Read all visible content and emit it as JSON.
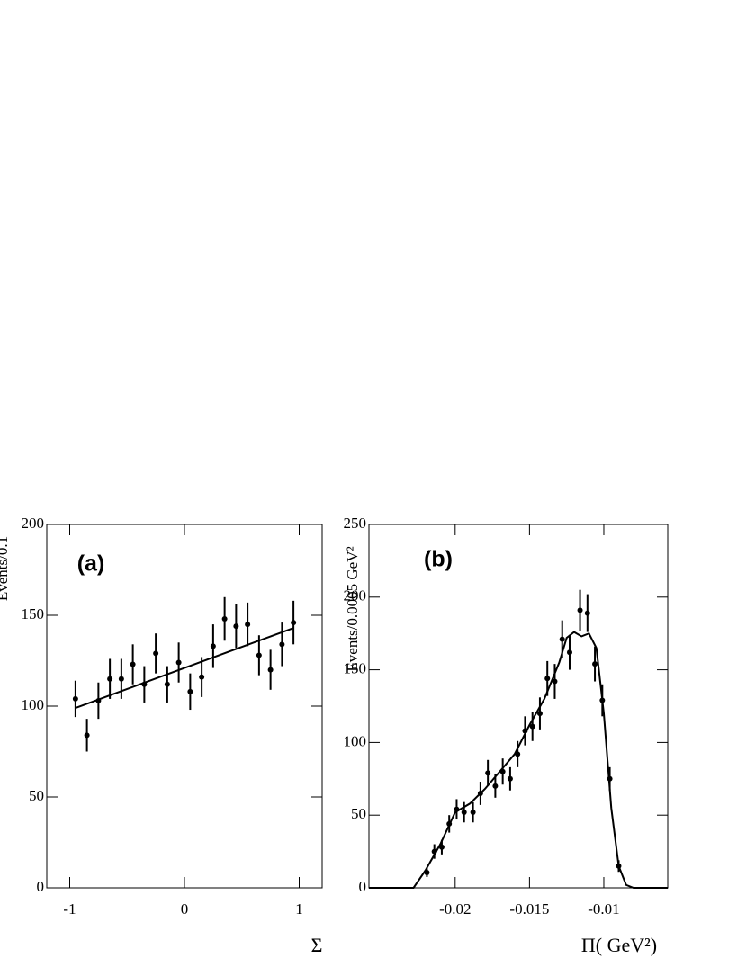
{
  "chart_data": [
    {
      "type": "scatter",
      "panel_label": "(a)",
      "xlabel": "Σ",
      "ylabel": "Events/0.1",
      "xlim": [
        -1.2,
        1.2
      ],
      "xticks": [
        -1,
        0,
        1
      ],
      "ylim": [
        0,
        200
      ],
      "yticks": [
        0,
        50,
        100,
        150,
        200
      ],
      "series": [
        {
          "style": "points",
          "color": "#000000",
          "x": [
            -0.95,
            -0.85,
            -0.75,
            -0.65,
            -0.55,
            -0.45,
            -0.35,
            -0.25,
            -0.15,
            -0.05,
            0.05,
            0.15,
            0.25,
            0.35,
            0.45,
            0.55,
            0.65,
            0.75,
            0.85,
            0.95
          ],
          "values": [
            104,
            84,
            103,
            115,
            115,
            123,
            112,
            129,
            112,
            124,
            108,
            116,
            133,
            148,
            144,
            145,
            128,
            120,
            134,
            146
          ],
          "errors": [
            10,
            9,
            10,
            11,
            11,
            11,
            10,
            11,
            10,
            11,
            10,
            11,
            12,
            12,
            12,
            12,
            11,
            11,
            12,
            12
          ]
        },
        {
          "style": "line",
          "color": "#000000",
          "x": [
            -0.95,
            0.95
          ],
          "values": [
            99,
            143
          ]
        }
      ]
    },
    {
      "type": "scatter",
      "panel_label": "(b)",
      "xlabel": "Π( GeV²)",
      "ylabel": "Events/0.0005 GeV²",
      "xlim": [
        -0.0258,
        -0.0057
      ],
      "xticks": [
        -0.02,
        -0.015,
        -0.01
      ],
      "ylim": [
        0,
        250
      ],
      "yticks": [
        0,
        50,
        100,
        150,
        200,
        250
      ],
      "series": [
        {
          "style": "points",
          "color": "#000000",
          "x": [
            -0.0219,
            -0.0214,
            -0.0209,
            -0.0204,
            -0.0199,
            -0.0194,
            -0.0188,
            -0.0183,
            -0.0178,
            -0.0173,
            -0.0168,
            -0.0163,
            -0.0158,
            -0.0153,
            -0.0148,
            -0.0143,
            -0.0138,
            -0.0133,
            -0.0128,
            -0.0123,
            -0.0116,
            -0.0111,
            -0.0106,
            -0.0101,
            -0.0096,
            -0.009
          ],
          "values": [
            10.5,
            25,
            28,
            44,
            54,
            52,
            52,
            65,
            79,
            70,
            80,
            75,
            92,
            108,
            111,
            120,
            144,
            142,
            171,
            162,
            191,
            189,
            154,
            129,
            75,
            15
          ],
          "errors": [
            3,
            5,
            5,
            6,
            7,
            7,
            7,
            8,
            9,
            8,
            9,
            8,
            9,
            10,
            10,
            11,
            12,
            12,
            13,
            12,
            14,
            13,
            12,
            11,
            8,
            4
          ]
        },
        {
          "style": "line",
          "color": "#000000",
          "x": [
            -0.0258,
            -0.0228,
            -0.022,
            -0.021,
            -0.02,
            -0.019,
            -0.018,
            -0.017,
            -0.016,
            -0.015,
            -0.014,
            -0.013,
            -0.0125,
            -0.012,
            -0.0115,
            -0.011,
            -0.0105,
            -0.01,
            -0.0095,
            -0.009,
            -0.0085,
            -0.008,
            -0.0057
          ],
          "values": [
            0,
            0,
            12,
            30,
            52,
            58,
            68,
            80,
            92,
            112,
            130,
            155,
            172,
            176,
            173,
            175,
            165,
            120,
            55,
            15,
            2,
            0,
            0
          ]
        }
      ]
    }
  ]
}
